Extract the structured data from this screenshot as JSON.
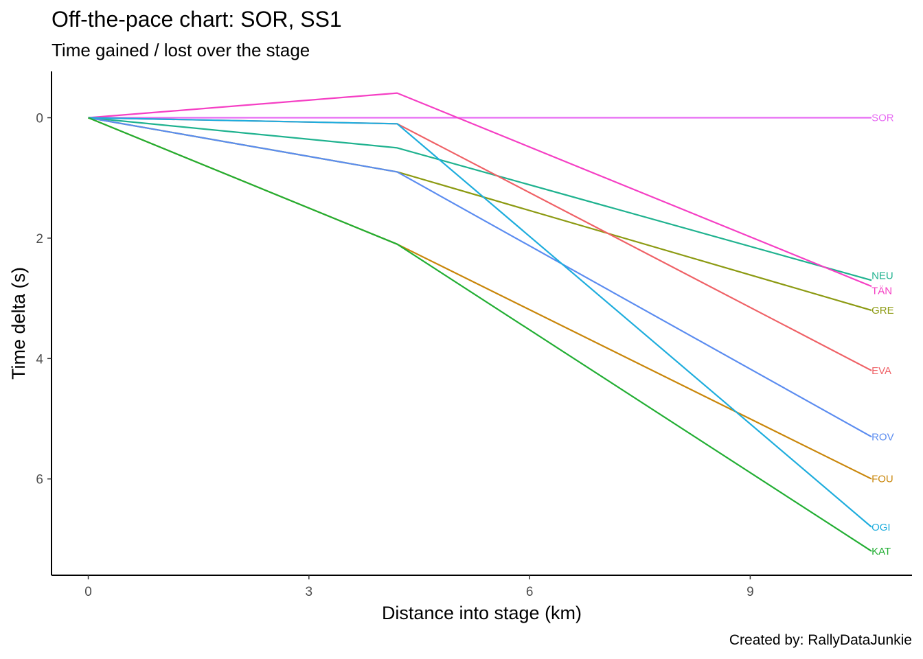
{
  "title": "Off-the-pace chart: SOR, SS1",
  "subtitle": "Time gained / lost over the stage",
  "caption": "Created by: RallyDataJunkie",
  "chart_data": {
    "type": "line",
    "title": "Off-the-pace chart: SOR, SS1",
    "subtitle": "Time gained / lost over the stage",
    "xlabel": "Distance into stage (km)",
    "ylabel": "Time delta (s)",
    "x_ticks": [
      0,
      3,
      6,
      9
    ],
    "y_ticks": [
      0,
      2,
      4,
      6
    ],
    "xlim": [
      -0.5,
      11.2
    ],
    "ylim": [
      -0.77,
      7.6
    ],
    "y_reversed": true,
    "grid": false,
    "legend": "none (direct end labels)",
    "x": [
      0,
      4.2,
      10.65
    ],
    "series": [
      {
        "name": "SOR",
        "color": "#E76BF3",
        "values": [
          0,
          0,
          0
        ]
      },
      {
        "name": "NEU",
        "color": "#1FB28F",
        "values": [
          0,
          0.5,
          2.7
        ]
      },
      {
        "name": "TÄN",
        "color": "#F53FC4",
        "values": [
          0,
          -0.41,
          2.8
        ]
      },
      {
        "name": "GRE",
        "color": "#8C9A12",
        "values": [
          0,
          0.9,
          3.2
        ]
      },
      {
        "name": "EVA",
        "color": "#EF6166",
        "values": [
          0,
          0.1,
          4.2
        ]
      },
      {
        "name": "ROV",
        "color": "#5B8CF0",
        "values": [
          0,
          0.9,
          5.3
        ]
      },
      {
        "name": "FOU",
        "color": "#C9860A",
        "values": [
          0,
          2.1,
          6.0
        ]
      },
      {
        "name": "OGI",
        "color": "#1EADDD",
        "values": [
          0,
          0.1,
          6.8
        ]
      },
      {
        "name": "KAT",
        "color": "#22AE33",
        "values": [
          0,
          2.1,
          7.2
        ]
      }
    ]
  }
}
